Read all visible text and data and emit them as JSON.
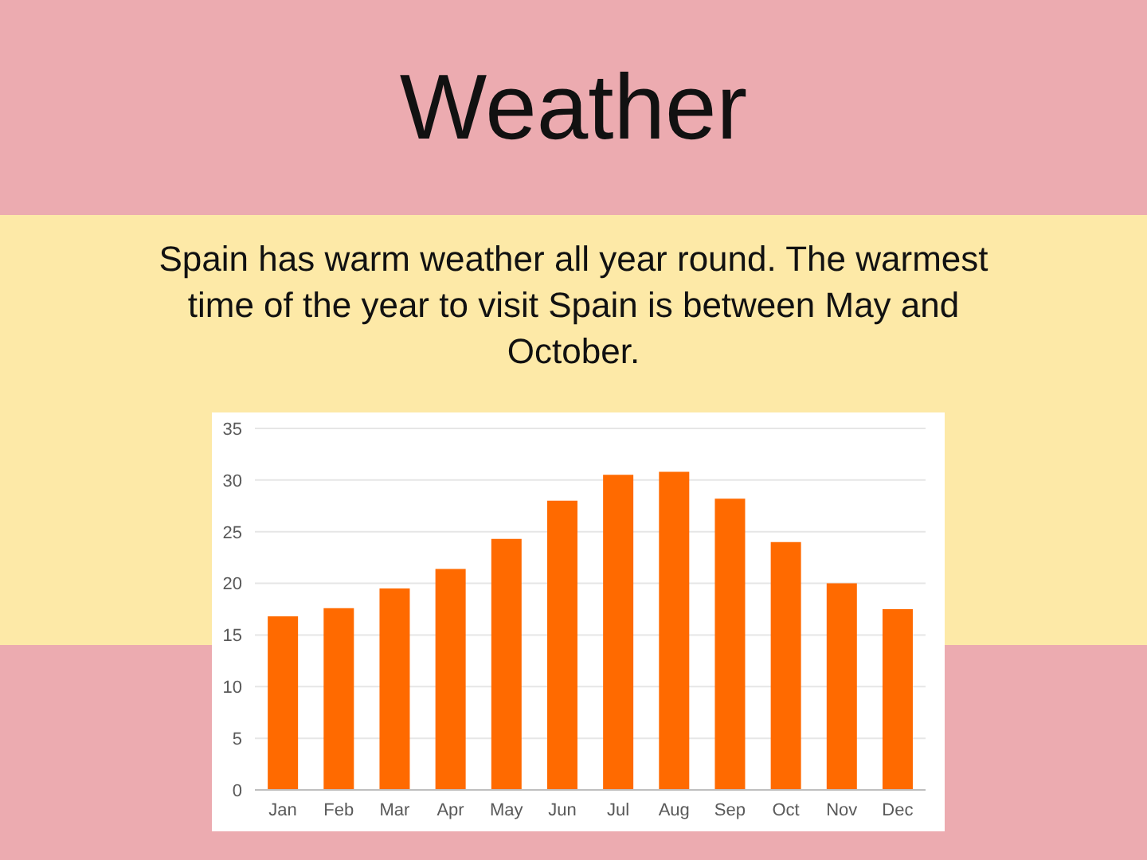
{
  "chart_data": {
    "type": "bar",
    "title": "Weather",
    "subtitle": "Spain has warm weather all year round. The warmest time of the year to visit Spain is between May and October.",
    "categories": [
      "Jan",
      "Feb",
      "Mar",
      "Apr",
      "May",
      "Jun",
      "Jul",
      "Aug",
      "Sep",
      "Oct",
      "Nov",
      "Dec"
    ],
    "values": [
      16.8,
      17.6,
      19.5,
      21.4,
      24.3,
      28.0,
      30.5,
      30.8,
      28.2,
      24.0,
      20.0,
      17.5
    ],
    "color": "#ff6a00",
    "ylim": [
      0,
      35
    ],
    "yticks": [
      0,
      5,
      10,
      15,
      20,
      25,
      30,
      35
    ],
    "grid": "y"
  }
}
